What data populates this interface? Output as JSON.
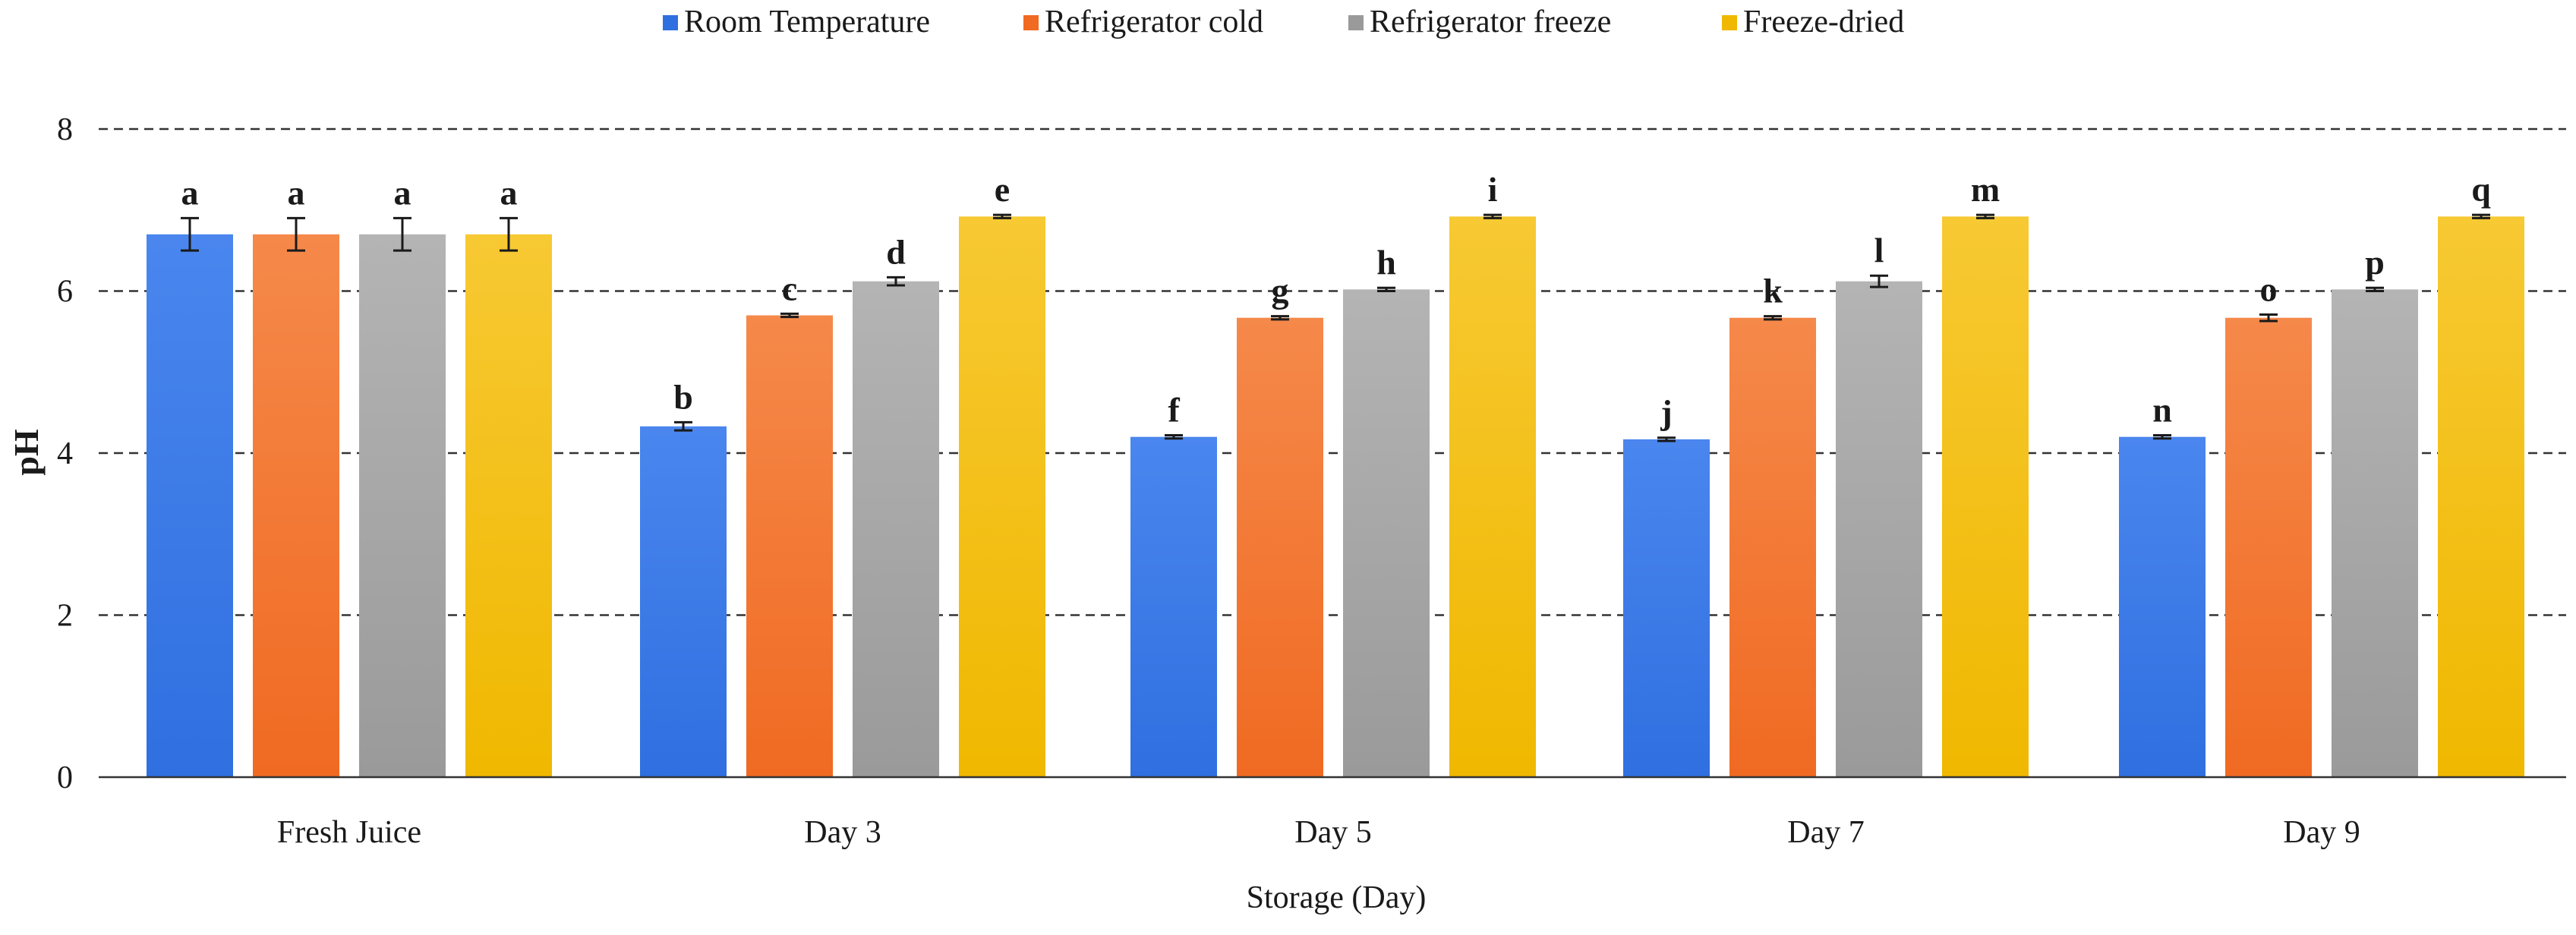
{
  "chart_data": {
    "type": "bar",
    "title": "",
    "xlabel": "Storage (Day)",
    "ylabel": "pH",
    "ylim": [
      0,
      8
    ],
    "yticks": [
      0,
      2,
      4,
      6,
      8
    ],
    "grid": true,
    "legend_position": "top-center",
    "categories": [
      "Fresh Juice",
      "Day 3",
      "Day 5",
      "Day 7",
      "Day 9"
    ],
    "series": [
      {
        "name": "Room Temperature",
        "color": "#2f6fe0",
        "color_light": "#4a86ee",
        "values": [
          6.7,
          4.33,
          4.2,
          4.17,
          4.2
        ],
        "errors": [
          0.2,
          0.05,
          0.02,
          0.02,
          0.02
        ],
        "labels": [
          "a",
          "b",
          "f",
          "j",
          "n"
        ]
      },
      {
        "name": "Refrigerator cold",
        "color": "#f06a22",
        "color_light": "#f5894a",
        "values": [
          6.7,
          5.7,
          5.67,
          5.67,
          5.67
        ],
        "errors": [
          0.2,
          0.02,
          0.02,
          0.02,
          0.04
        ],
        "labels": [
          "a",
          "c",
          "g",
          "k",
          "o"
        ]
      },
      {
        "name": "Refrigerator freeze",
        "color": "#9a9a9a",
        "color_light": "#b4b4b4",
        "values": [
          6.7,
          6.12,
          6.02,
          6.12,
          6.02
        ],
        "errors": [
          0.2,
          0.05,
          0.02,
          0.07,
          0.02
        ],
        "labels": [
          "a",
          "d",
          "h",
          "l",
          "p"
        ]
      },
      {
        "name": "Freeze-dried",
        "color": "#f0b800",
        "color_light": "#f7c933",
        "values": [
          6.7,
          6.92,
          6.92,
          6.92,
          6.92
        ],
        "errors": [
          0.2,
          0.02,
          0.02,
          0.02,
          0.02
        ],
        "labels": [
          "a",
          "e",
          "i",
          "m",
          "q"
        ]
      }
    ]
  }
}
